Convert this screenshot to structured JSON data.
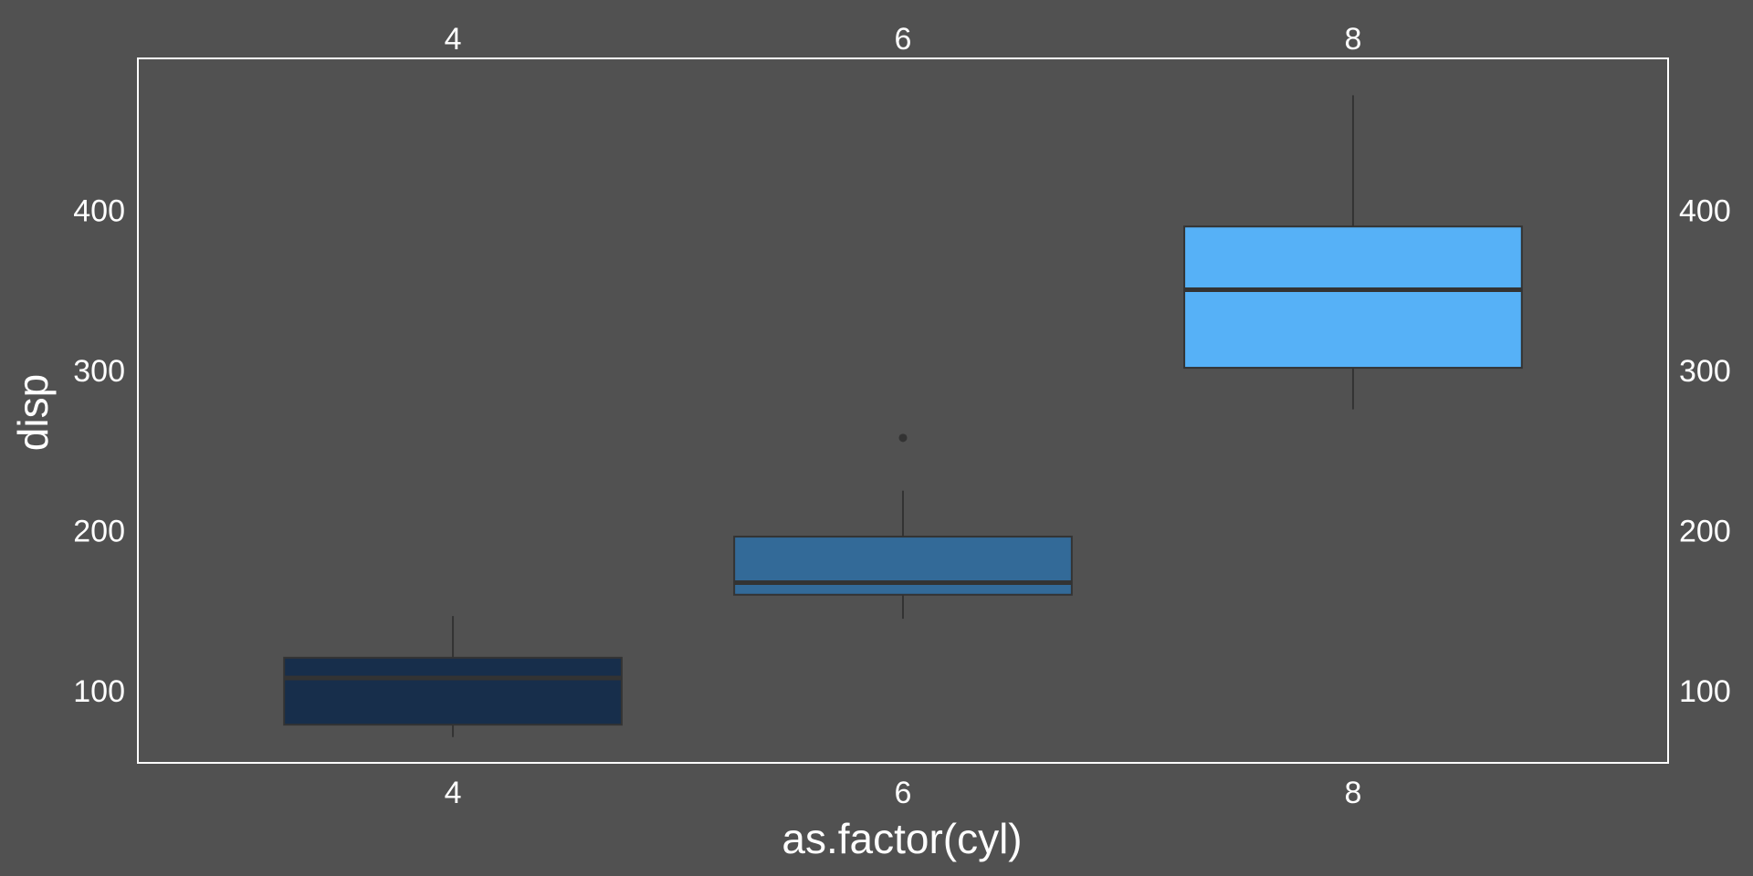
{
  "chart_data": {
    "type": "box",
    "title": "",
    "xlabel": "as.factor(cyl)",
    "ylabel": "disp",
    "categories": [
      "4",
      "6",
      "8"
    ],
    "boxes": [
      {
        "category": "4",
        "whisker_low": 71.1,
        "q1": 78.85,
        "median": 108.0,
        "q3": 120.65,
        "whisker_high": 146.7,
        "outliers": [],
        "fill": "#172e4b"
      },
      {
        "category": "6",
        "whisker_low": 145.0,
        "q1": 160.0,
        "median": 167.6,
        "q3": 196.3,
        "whisker_high": 225.0,
        "outliers": [
          258.0
        ],
        "fill": "#336a98"
      },
      {
        "category": "8",
        "whisker_low": 275.8,
        "q1": 301.75,
        "median": 350.5,
        "q3": 390.0,
        "whisker_high": 472.0,
        "outliers": [],
        "fill": "#56b1f7"
      }
    ],
    "y_ticks": [
      100,
      200,
      300,
      400
    ],
    "ylim": [
      55,
      495
    ],
    "grid": false,
    "legend": "none",
    "secondary_axes": true,
    "colors": {
      "background": "#515151",
      "panel_border": "#ffffff",
      "box_outline": "#333333",
      "text": "#ffffff"
    }
  }
}
